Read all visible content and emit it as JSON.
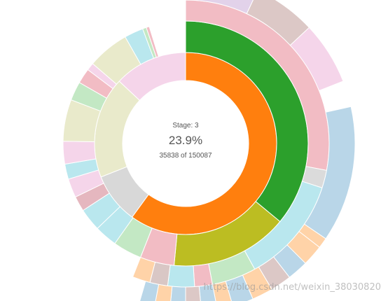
{
  "watermark": "https://blog.csdn.net/weixin_38030820",
  "chart_data": {
    "type": "sunburst",
    "center": {
      "stage_label": "Stage: 3",
      "percentage": "23.9%",
      "count_text": "35838 of 150087"
    },
    "rings": [
      {
        "level": 1,
        "segments": [
          {
            "color": "#ff7f0e",
            "value": 0.6
          },
          {
            "color": "#d8d8d8",
            "value": 0.09
          },
          {
            "color": "#e9eacb",
            "value": 0.18
          },
          {
            "color": "#f5d5ea",
            "value": 0.13
          }
        ]
      },
      {
        "level": 2,
        "segments": [
          {
            "color": "#2ca02c",
            "value": 0.36
          },
          {
            "color": "#bcbd22",
            "value": 0.155
          },
          {
            "color": "#f2bcc4",
            "value": 0.045
          },
          {
            "color": "#c3e8c4",
            "value": 0.038
          },
          {
            "color": "#b9e7ee",
            "value": 0.03
          },
          {
            "color": "#b9e7ee",
            "value": 0.03
          },
          {
            "color": "#e5b7bf",
            "value": 0.02
          },
          {
            "color": "#f5d5ea",
            "value": 0.025
          },
          {
            "color": "#b9e7ee",
            "value": 0.02
          },
          {
            "color": "#f5d5ea",
            "value": 0.03
          },
          {
            "color": "#e9eacb",
            "value": 0.055
          },
          {
            "color": "#c3e8c4",
            "value": 0.025
          },
          {
            "color": "#f2bcc4",
            "value": 0.02
          },
          {
            "color": "#f5d5ea",
            "value": 0.01
          },
          {
            "color": "#e9eacb",
            "value": 0.055
          },
          {
            "color": "#b9e7ee",
            "value": 0.025
          },
          {
            "color": "#c3e8c4",
            "value": 0.005
          },
          {
            "color": "#f2bcc4",
            "value": 0.004
          }
        ]
      },
      {
        "level": 3,
        "segments": [
          {
            "color": "#f2bcc4",
            "value": 0.28
          },
          {
            "color": "#dbdbdb",
            "value": 0.02
          },
          {
            "color": "#b9e7ee",
            "value": 0.12
          },
          {
            "color": "#c3e8c4",
            "value": 0.05
          },
          {
            "color": "#f2bcc4",
            "value": 0.02
          },
          {
            "color": "#b9e7ee",
            "value": 0.03
          },
          {
            "color": "#d9c7c5",
            "value": 0.02
          },
          {
            "color": "#ffd3a8",
            "value": 0.02
          }
        ]
      },
      {
        "level": 4,
        "segments": [
          {
            "color": "#e2d2ea",
            "value": 0.07
          },
          {
            "color": "#dcc8c6",
            "value": 0.06
          },
          {
            "color": "#f5d5ea",
            "value": 0.06
          },
          {
            "color": "#ffffff",
            "value": 0.025
          },
          {
            "color": "#b9d6e8",
            "value": 0.13
          },
          {
            "color": "#ffd3a8",
            "value": 0.01
          },
          {
            "color": "#ffd3a8",
            "value": 0.02
          },
          {
            "color": "#b9d6e8",
            "value": 0.02
          },
          {
            "color": "#dcc8c6",
            "value": 0.02
          },
          {
            "color": "#ffd3a8",
            "value": 0.02
          },
          {
            "color": "#b9d6e8",
            "value": 0.02
          },
          {
            "color": "#ffd3a8",
            "value": 0.015
          },
          {
            "color": "#b9d6e8",
            "value": 0.015
          },
          {
            "color": "#dcc8c6",
            "value": 0.015
          },
          {
            "color": "#b9d6e8",
            "value": 0.015
          },
          {
            "color": "#ffd3a8",
            "value": 0.015
          },
          {
            "color": "#b9d6e8",
            "value": 0.015
          }
        ]
      }
    ]
  }
}
